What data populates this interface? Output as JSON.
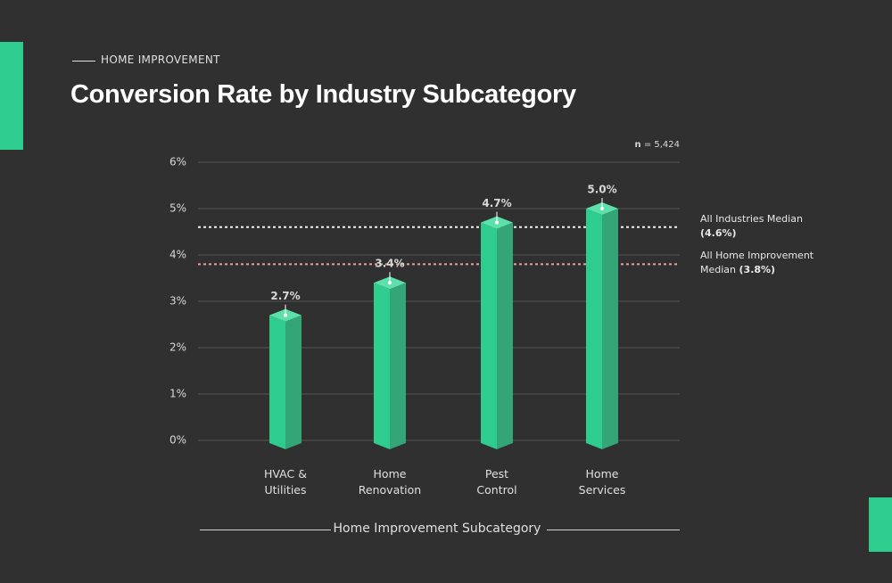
{
  "chart_data": {
    "type": "bar3d",
    "subtitle": "HOME IMPROVEMENT",
    "title": "Conversion Rate by Industry Subcategory",
    "note_label": "n",
    "note_value": "= 5,424",
    "categories": [
      "HVAC & Utilities",
      "Home Renovation",
      "Pest Control",
      "Home Services"
    ],
    "values": [
      2.7,
      3.4,
      4.7,
      5.0
    ],
    "value_labels": [
      "2.7%",
      "3.4%",
      "4.7%",
      "5.0%"
    ],
    "color": "#2ecc8f",
    "ylim": [
      0,
      6
    ],
    "yticks": [
      {
        "value": 0,
        "label": "0%"
      },
      {
        "value": 1,
        "label": "1%"
      },
      {
        "value": 2,
        "label": "2%"
      },
      {
        "value": 3,
        "label": "3%"
      },
      {
        "value": 4,
        "label": "4%"
      },
      {
        "value": 5,
        "label": "5%"
      },
      {
        "value": 6,
        "label": "6%"
      }
    ],
    "grid": true,
    "x_label": "Home Improvement Subcategory",
    "reference_lines": [
      {
        "name": "All Industries Median",
        "value": 4.6,
        "value_label": "(4.6%)",
        "color": "#f2f2f2"
      },
      {
        "name": "All Home Improvement Median",
        "value": 3.8,
        "value_label": "(3.8%)",
        "color": "#e8a0a0"
      }
    ]
  }
}
